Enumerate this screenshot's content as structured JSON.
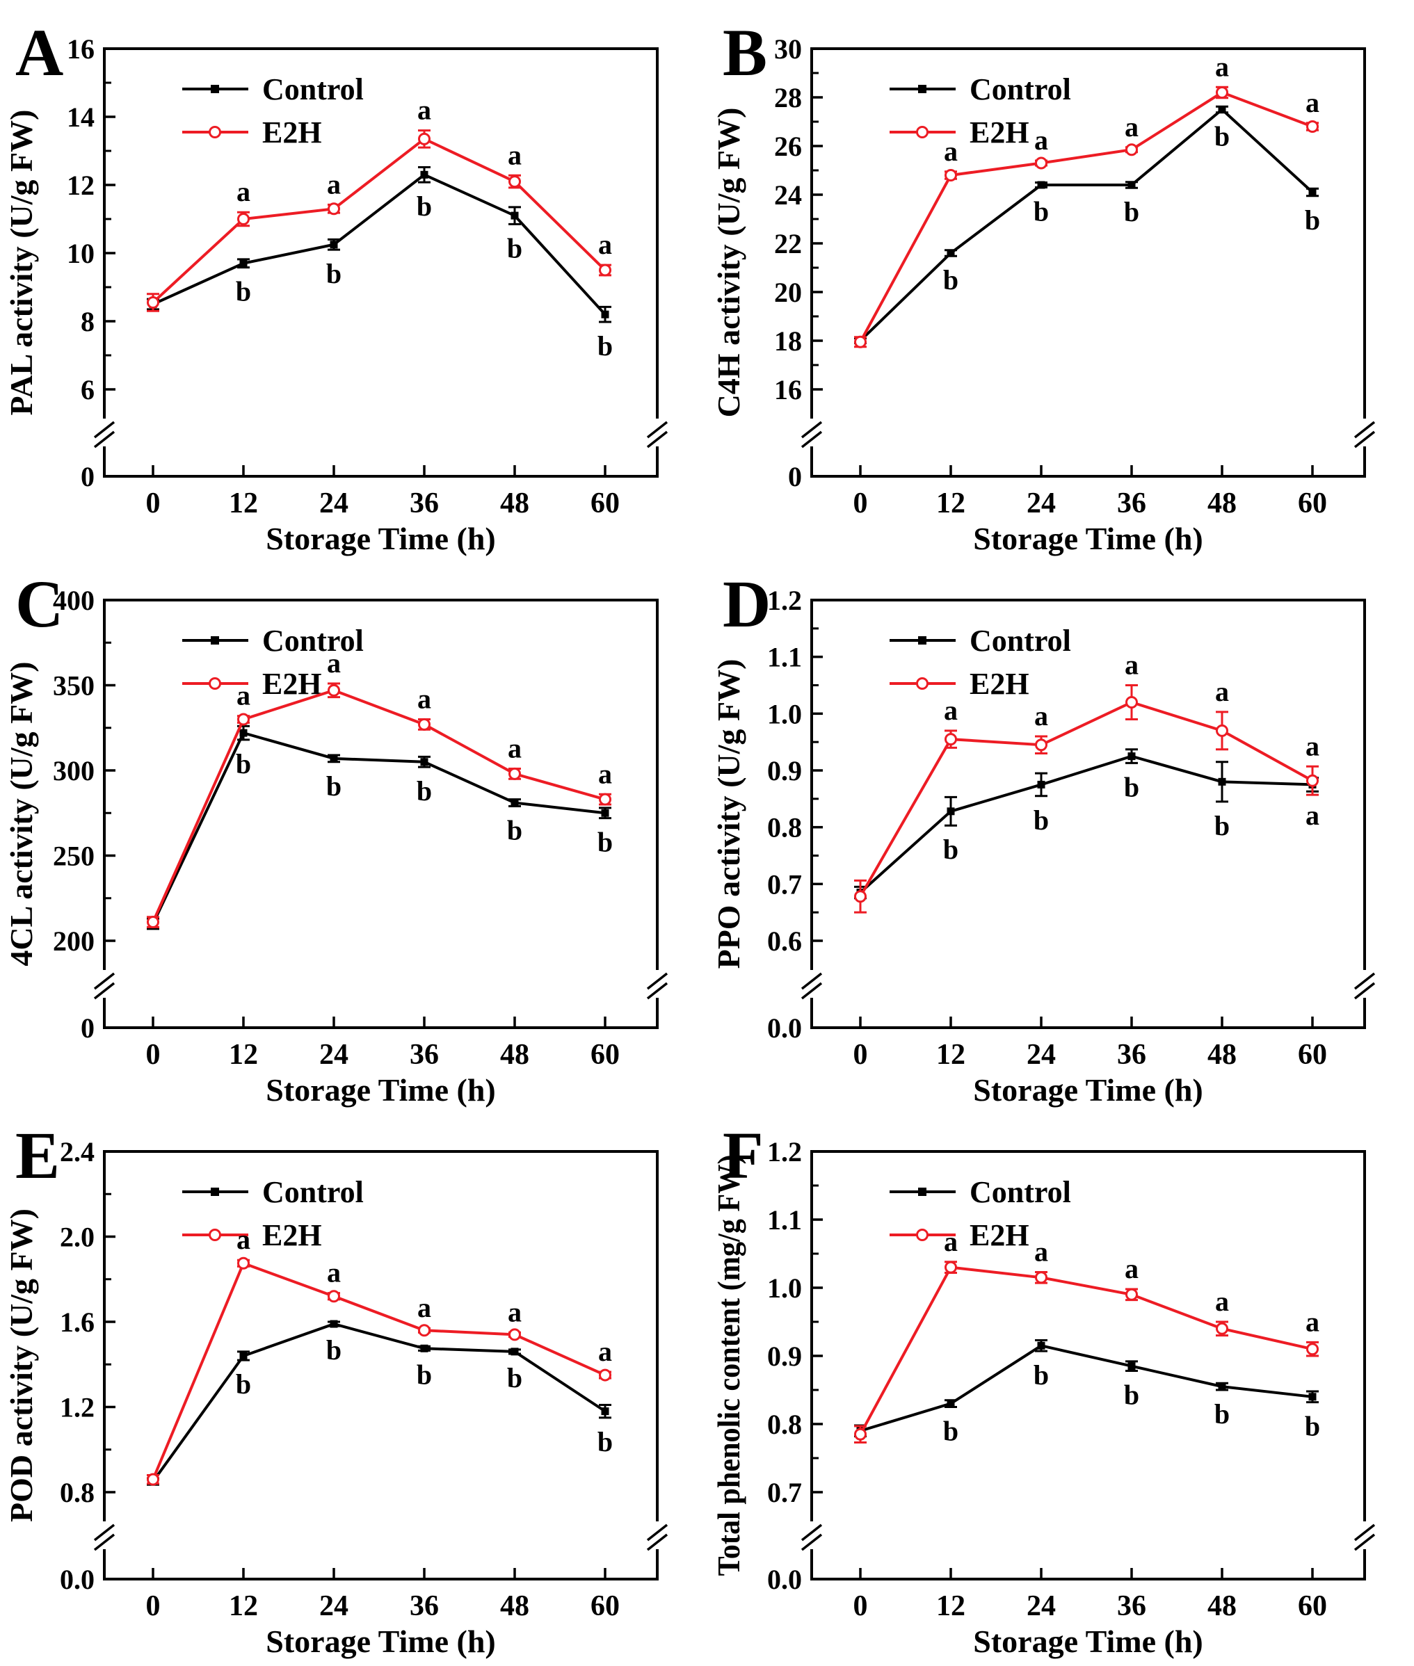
{
  "figure": {
    "background": "#ffffff",
    "x_label": "Storage Time (h)",
    "x_tick_labels": [
      "0",
      "12",
      "24",
      "36",
      "48",
      "60"
    ],
    "legend": {
      "position": "top-left-inside",
      "entries": [
        "Control",
        "E2H"
      ]
    },
    "colors": {
      "control": "#000000",
      "e2h": "#ed1c24",
      "text": "#000000"
    }
  },
  "chart_data": [
    {
      "type": "line",
      "letter": "A",
      "ylabel": "PAL activity (U/g FW)",
      "xlabel": "Storage Time (h)",
      "x": [
        0,
        12,
        24,
        36,
        48,
        60
      ],
      "x_tick_labels": [
        "0",
        "12",
        "24",
        "36",
        "48",
        "60"
      ],
      "y_axis_break": true,
      "y_zero_label": "0",
      "y_range": [
        6,
        16
      ],
      "y_tick_values": [
        16,
        14,
        12,
        10,
        8,
        6
      ],
      "y_tick_labels": [
        "16",
        "14",
        "12",
        "10",
        "8",
        "6"
      ],
      "series": [
        {
          "name": "Control",
          "color": "#000000",
          "marker": "filled-square",
          "letter_pos": "below",
          "values": [
            8.5,
            9.7,
            10.25,
            12.3,
            11.1,
            8.2
          ],
          "errors": [
            0.15,
            0.12,
            0.15,
            0.22,
            0.25,
            0.22
          ],
          "letters": [
            "",
            "b",
            "b",
            "b",
            "b",
            "b"
          ]
        },
        {
          "name": "E2H",
          "color": "#ed1c24",
          "marker": "open-circle",
          "letter_pos": "above",
          "values": [
            8.55,
            11.0,
            11.3,
            13.35,
            12.1,
            9.5
          ],
          "errors": [
            0.25,
            0.2,
            0.12,
            0.25,
            0.18,
            0.15
          ],
          "letters": [
            "",
            "a",
            "a",
            "a",
            "a",
            "a"
          ]
        }
      ]
    },
    {
      "type": "line",
      "letter": "B",
      "ylabel": "C4H activity (U/g FW)",
      "xlabel": "Storage Time (h)",
      "x": [
        0,
        12,
        24,
        36,
        48,
        60
      ],
      "x_tick_labels": [
        "0",
        "12",
        "24",
        "36",
        "48",
        "60"
      ],
      "y_axis_break": true,
      "y_zero_label": "0",
      "y_range": [
        16,
        30
      ],
      "y_tick_values": [
        30,
        28,
        26,
        24,
        22,
        20,
        18,
        16
      ],
      "y_tick_labels": [
        "30",
        "28",
        "26",
        "24",
        "22",
        "20",
        "18",
        "16"
      ],
      "series": [
        {
          "name": "Control",
          "color": "#000000",
          "marker": "filled-square",
          "letter_pos": "below",
          "values": [
            18.0,
            21.6,
            24.4,
            24.4,
            27.5,
            24.1
          ],
          "errors": [
            0.1,
            0.12,
            0.1,
            0.12,
            0.12,
            0.15
          ],
          "letters": [
            "",
            "b",
            "b",
            "b",
            "b",
            "b"
          ]
        },
        {
          "name": "E2H",
          "color": "#ed1c24",
          "marker": "open-circle",
          "letter_pos": "above",
          "values": [
            17.95,
            24.8,
            25.3,
            25.85,
            28.2,
            26.8
          ],
          "errors": [
            0.2,
            0.15,
            0.1,
            0.1,
            0.22,
            0.15
          ],
          "letters": [
            "",
            "a",
            "a",
            "a",
            "a",
            "a"
          ]
        }
      ]
    },
    {
      "type": "line",
      "letter": "C",
      "ylabel": "4CL activity (U/g FW)",
      "xlabel": "Storage Time (h)",
      "x": [
        0,
        12,
        24,
        36,
        48,
        60
      ],
      "x_tick_labels": [
        "0",
        "12",
        "24",
        "36",
        "48",
        "60"
      ],
      "y_axis_break": true,
      "y_zero_label": "0",
      "y_range": [
        200,
        400
      ],
      "y_tick_values": [
        400,
        350,
        300,
        250,
        200
      ],
      "y_tick_labels": [
        "400",
        "350",
        "300",
        "250",
        "200"
      ],
      "series": [
        {
          "name": "Control",
          "color": "#000000",
          "marker": "filled-square",
          "letter_pos": "below",
          "values": [
            210,
            322,
            307,
            305,
            281,
            275
          ],
          "errors": [
            3,
            4,
            2,
            3,
            2,
            3
          ],
          "letters": [
            "",
            "b",
            "b",
            "b",
            "b",
            "b"
          ]
        },
        {
          "name": "E2H",
          "color": "#ed1c24",
          "marker": "open-circle",
          "letter_pos": "above",
          "values": [
            211,
            330,
            347,
            327,
            298,
            283
          ],
          "errors": [
            3,
            2,
            4,
            3,
            3,
            3
          ],
          "letters": [
            "",
            "a",
            "a",
            "a",
            "a",
            "a"
          ]
        }
      ]
    },
    {
      "type": "line",
      "letter": "D",
      "ylabel": "PPO activity (U/g FW)",
      "xlabel": "Storage Time (h)",
      "x": [
        0,
        12,
        24,
        36,
        48,
        60
      ],
      "x_tick_labels": [
        "0",
        "12",
        "24",
        "36",
        "48",
        "60"
      ],
      "y_axis_break": true,
      "y_zero_label": "0.0",
      "y_range": [
        0.6,
        1.2
      ],
      "y_tick_values": [
        1.2,
        1.1,
        1.0,
        0.9,
        0.8,
        0.7,
        0.6
      ],
      "y_tick_labels": [
        "1.2",
        "1.1",
        "1.0",
        "0.9",
        "0.8",
        "0.7",
        "0.6"
      ],
      "series": [
        {
          "name": "Control",
          "color": "#000000",
          "marker": "filled-square",
          "letter_pos": "below",
          "values": [
            0.685,
            0.828,
            0.875,
            0.925,
            0.88,
            0.875
          ],
          "errors": [
            0.01,
            0.025,
            0.02,
            0.012,
            0.035,
            0.012
          ],
          "letters": [
            "",
            "b",
            "b",
            "b",
            "b",
            "a"
          ]
        },
        {
          "name": "E2H",
          "color": "#ed1c24",
          "marker": "open-circle",
          "letter_pos": "above",
          "values": [
            0.678,
            0.955,
            0.945,
            1.02,
            0.97,
            0.882
          ],
          "errors": [
            0.028,
            0.015,
            0.015,
            0.03,
            0.033,
            0.025
          ],
          "letters": [
            "",
            "a",
            "a",
            "a",
            "a",
            "a"
          ]
        }
      ]
    },
    {
      "type": "line",
      "letter": "E",
      "ylabel": "POD activity (U/g FW)",
      "xlabel": "Storage Time (h)",
      "x": [
        0,
        12,
        24,
        36,
        48,
        60
      ],
      "x_tick_labels": [
        "0",
        "12",
        "24",
        "36",
        "48",
        "60"
      ],
      "y_axis_break": true,
      "y_zero_label": "0.0",
      "y_range": [
        0.8,
        2.4
      ],
      "y_tick_values": [
        2.4,
        2.0,
        1.6,
        1.2,
        0.8
      ],
      "y_tick_labels": [
        "2.4",
        "2.0",
        "1.6",
        "1.2",
        "0.8"
      ],
      "series": [
        {
          "name": "Control",
          "color": "#000000",
          "marker": "filled-square",
          "letter_pos": "below",
          "values": [
            0.85,
            1.44,
            1.59,
            1.475,
            1.46,
            1.18
          ],
          "errors": [
            0.015,
            0.02,
            0.01,
            0.01,
            0.01,
            0.03
          ],
          "letters": [
            "",
            "b",
            "b",
            "b",
            "b",
            "b"
          ]
        },
        {
          "name": "E2H",
          "color": "#ed1c24",
          "marker": "open-circle",
          "letter_pos": "above",
          "values": [
            0.86,
            1.875,
            1.72,
            1.56,
            1.54,
            1.35
          ],
          "errors": [
            0.02,
            0.015,
            0.015,
            0.01,
            0.01,
            0.015
          ],
          "letters": [
            "",
            "a",
            "a",
            "a",
            "a",
            "a"
          ]
        }
      ]
    },
    {
      "type": "line",
      "letter": "F",
      "ylabel": "Total phenolic content (mg/g FW)",
      "xlabel": "Storage Time (h)",
      "x": [
        0,
        12,
        24,
        36,
        48,
        60
      ],
      "x_tick_labels": [
        "0",
        "12",
        "24",
        "36",
        "48",
        "60"
      ],
      "y_axis_break": true,
      "y_zero_label": "0.0",
      "y_range": [
        0.7,
        1.2
      ],
      "y_tick_values": [
        1.2,
        1.1,
        1.0,
        0.9,
        0.8,
        0.7
      ],
      "y_tick_labels": [
        "1.2",
        "1.1",
        "1.0",
        "0.9",
        "0.8",
        "0.7"
      ],
      "series": [
        {
          "name": "Control",
          "color": "#000000",
          "marker": "filled-square",
          "letter_pos": "below",
          "values": [
            0.79,
            0.83,
            0.915,
            0.885,
            0.855,
            0.84
          ],
          "errors": [
            0.008,
            0.005,
            0.008,
            0.007,
            0.005,
            0.008
          ],
          "letters": [
            "",
            "b",
            "b",
            "b",
            "b",
            "b"
          ]
        },
        {
          "name": "E2H",
          "color": "#ed1c24",
          "marker": "open-circle",
          "letter_pos": "above",
          "values": [
            0.785,
            1.03,
            1.015,
            0.99,
            0.94,
            0.91
          ],
          "errors": [
            0.012,
            0.008,
            0.008,
            0.008,
            0.01,
            0.01
          ],
          "letters": [
            "",
            "a",
            "a",
            "a",
            "a",
            "a"
          ]
        }
      ]
    }
  ]
}
